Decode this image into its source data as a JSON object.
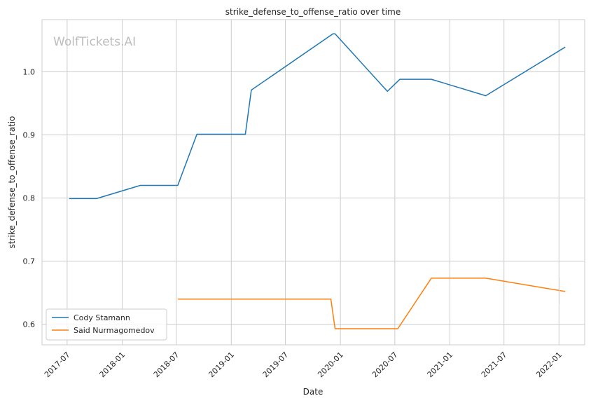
{
  "chart_data": {
    "type": "line",
    "title": "strike_defense_to_offense_ratio over time",
    "xlabel": "Date",
    "ylabel": "strike_defense_to_offense_ratio",
    "watermark": "WolfTickets.AI",
    "x_ticks": [
      "2017-07",
      "2018-01",
      "2018-07",
      "2019-01",
      "2019-07",
      "2020-01",
      "2020-07",
      "2021-01",
      "2021-07",
      "2022-01"
    ],
    "y_ticks": [
      "0.6",
      "0.7",
      "0.8",
      "0.9",
      "1.0"
    ],
    "xlim": [
      "2017-04-08",
      "2022-03-28"
    ],
    "ylim": [
      0.5675,
      1.0825
    ],
    "grid": true,
    "legend_position": "lower-left",
    "series": [
      {
        "name": "Cody Stamann",
        "color": "#1f77b4",
        "points": [
          [
            "2017-07-08",
            0.799
          ],
          [
            "2017-10-07",
            0.799
          ],
          [
            "2018-03-03",
            0.82
          ],
          [
            "2018-07-06",
            0.82
          ],
          [
            "2018-09-08",
            0.901
          ],
          [
            "2019-02-17",
            0.901
          ],
          [
            "2019-03-09",
            0.971
          ],
          [
            "2019-12-07",
            1.06
          ],
          [
            "2019-12-14",
            1.06
          ],
          [
            "2020-06-06",
            0.969
          ],
          [
            "2020-07-18",
            0.988
          ],
          [
            "2020-10-31",
            0.988
          ],
          [
            "2021-05-01",
            0.962
          ],
          [
            "2022-01-22",
            1.039
          ]
        ]
      },
      {
        "name": "Said Nurmagomedov",
        "color": "#ff7f0e",
        "points": [
          [
            "2018-07-06",
            0.64
          ],
          [
            "2019-11-30",
            0.64
          ],
          [
            "2019-12-14",
            0.593
          ],
          [
            "2020-07-11",
            0.593
          ],
          [
            "2020-10-31",
            0.673
          ],
          [
            "2021-05-01",
            0.673
          ],
          [
            "2022-01-22",
            0.652
          ]
        ]
      }
    ]
  }
}
